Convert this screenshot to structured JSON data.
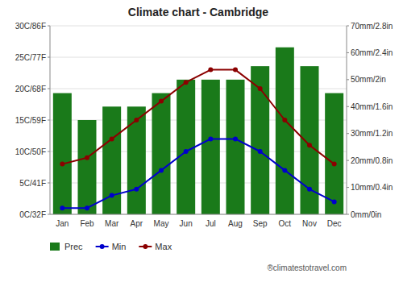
{
  "chart_data": {
    "type": "bar",
    "title": "Climate chart - Cambridge",
    "categories": [
      "Jan",
      "Feb",
      "Mar",
      "Apr",
      "May",
      "Jun",
      "Jul",
      "Aug",
      "Sep",
      "Oct",
      "Nov",
      "Dec"
    ],
    "series": [
      {
        "name": "Prec",
        "type": "bar",
        "axis": "y2",
        "color": "#1a7a1a",
        "values": [
          45,
          35,
          40,
          40,
          45,
          50,
          50,
          50,
          55,
          62,
          55,
          45
        ]
      },
      {
        "name": "Min",
        "type": "line",
        "marker": "circle",
        "color": "#0000cc",
        "values": [
          1,
          1,
          3,
          4,
          7,
          10,
          12,
          12,
          10,
          7,
          4,
          2
        ]
      },
      {
        "name": "Max",
        "type": "line",
        "marker": "circle",
        "color": "#8b0000",
        "values": [
          8,
          9,
          12,
          15,
          18,
          21,
          23,
          23,
          20,
          15,
          11,
          8
        ]
      }
    ],
    "ylim": [
      0,
      30
    ],
    "yticks": [
      {
        "value": 0,
        "label": "0C/32F"
      },
      {
        "value": 5,
        "label": "5C/41F"
      },
      {
        "value": 10,
        "label": "10C/50F"
      },
      {
        "value": 15,
        "label": "15C/59F"
      },
      {
        "value": 20,
        "label": "20C/68F"
      },
      {
        "value": 25,
        "label": "25C/77F"
      },
      {
        "value": 30,
        "label": "30C/86F"
      }
    ],
    "y2lim": [
      0,
      70
    ],
    "y2ticks": [
      {
        "value": 0,
        "label": "0mm/0in"
      },
      {
        "value": 10,
        "label": "10mm/0.4in"
      },
      {
        "value": 20,
        "label": "20mm/0.8in"
      },
      {
        "value": 30,
        "label": "30mm/1.2in"
      },
      {
        "value": 40,
        "label": "40mm/1.6in"
      },
      {
        "value": 50,
        "label": "50mm/2in"
      },
      {
        "value": 60,
        "label": "60mm/2.4in"
      },
      {
        "value": 70,
        "label": "70mm/2.8in"
      }
    ],
    "grid": true,
    "legend": "lower left",
    "annotations": [
      "®climatestotravel.com"
    ]
  }
}
